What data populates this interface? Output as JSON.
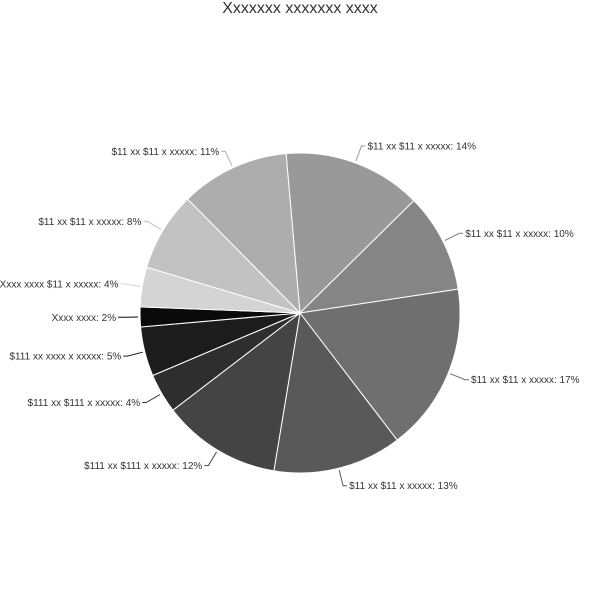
{
  "chart_data": {
    "type": "pie",
    "title": "Xxxxxxx xxxxxxx xxxx",
    "slices": [
      {
        "label": "$11 xx $11 x xxxxx: 14%",
        "value": 14,
        "color": "#999999"
      },
      {
        "label": "$11 xx $11 x xxxxx: 10%",
        "value": 10,
        "color": "#858585"
      },
      {
        "label": "$11 xx $11 x xxxxx: 17%",
        "value": 17,
        "color": "#6f6f6f"
      },
      {
        "label": "$11 xx $11 x xxxxx: 13%",
        "value": 13,
        "color": "#595959"
      },
      {
        "label": "$111 xx $111 x xxxxx: 12%",
        "value": 12,
        "color": "#444444"
      },
      {
        "label": "$111 xx $111 x xxxxx: 4%",
        "value": 4,
        "color": "#2e2e2e"
      },
      {
        "label": "$111 xx xxxx x xxxxx: 5%",
        "value": 5,
        "color": "#1c1c1c"
      },
      {
        "label": "Xxxx xxxx: 2%",
        "value": 2,
        "color": "#0a0a0a"
      },
      {
        "label": "Xxxx xxxx $11 x xxxxx: 4%",
        "value": 4,
        "color": "#d4d4d4"
      },
      {
        "label": "$11 xx $11 x xxxxx: 8%",
        "value": 8,
        "color": "#c2c2c2"
      },
      {
        "label": "$11 xx $11 x xxxxx: 11%",
        "value": 11,
        "color": "#adadad"
      }
    ],
    "start_direction": "top, slightly left of center",
    "direction": "clockwise",
    "legend": "none"
  }
}
